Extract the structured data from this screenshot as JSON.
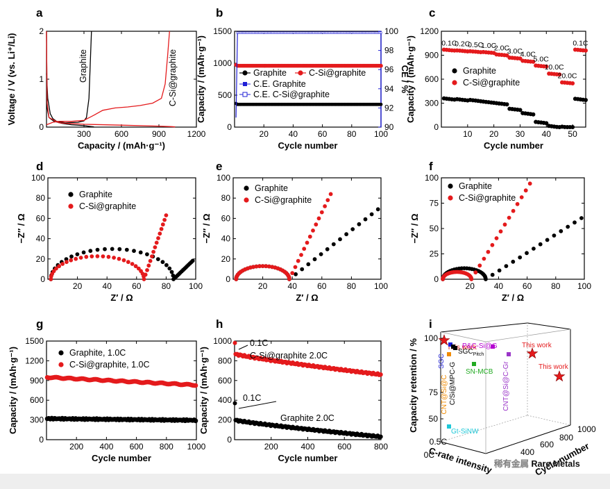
{
  "colors": {
    "graphite": "#000000",
    "csi": "#e41a1c",
    "ce": "#1f1fd6",
    "bottom_bar": "#eeeeee"
  },
  "watermark": "稀有金属 Rare Metals",
  "chart_data": [
    {
      "id": "a",
      "panel": "a",
      "type": "line",
      "xlabel": "Capacity / (mAh·g⁻¹)",
      "ylabel": "Voltage / V (vs. Li⁺/Li)",
      "xlim": [
        0,
        1200
      ],
      "ylim": [
        0,
        2
      ],
      "xticks": [
        300,
        600,
        900,
        1200
      ],
      "yticks": [
        0,
        1,
        2
      ],
      "series": [
        {
          "name": "Graphite",
          "color": "graphite",
          "label_rot": -90,
          "x": [
            0,
            10,
            30,
            50,
            80,
            150,
            250,
            300,
            320,
            340,
            350,
            360
          ],
          "y": [
            1.12,
            0.6,
            0.28,
            0.18,
            0.12,
            0.09,
            0.1,
            0.13,
            0.2,
            0.6,
            1.3,
            2.0
          ]
        },
        {
          "name": "Graphite-discharge",
          "color": "graphite",
          "x": [
            0,
            5,
            20,
            60,
            120,
            200,
            300,
            360,
            380
          ],
          "y": [
            2.0,
            0.4,
            0.2,
            0.12,
            0.08,
            0.05,
            0.03,
            0.01,
            0.005
          ]
        },
        {
          "name": "C-Si@graphite",
          "color": "csi",
          "x": [
            0,
            50,
            100,
            200,
            300,
            380,
            450,
            550,
            650,
            750,
            850,
            920,
            950,
            970,
            985
          ],
          "y": [
            0.05,
            0.1,
            0.12,
            0.12,
            0.14,
            0.25,
            0.35,
            0.4,
            0.42,
            0.45,
            0.5,
            0.6,
            0.9,
            1.5,
            2.0
          ]
        },
        {
          "name": "C-Si@graphite-discharge",
          "color": "csi",
          "x": [
            0,
            5,
            20,
            100,
            300,
            600,
            900,
            1000,
            1030
          ],
          "y": [
            2.0,
            0.5,
            0.2,
            0.09,
            0.06,
            0.04,
            0.02,
            0.01,
            0.005
          ]
        }
      ]
    },
    {
      "id": "b",
      "panel": "b",
      "type": "scatter",
      "xlabel": "Cycle number",
      "ylabel": "Capacity / (mAh·g⁻¹)",
      "y2label": "CE / %",
      "xlim": [
        0,
        100
      ],
      "ylim": [
        0,
        1500
      ],
      "y2lim": [
        90,
        100
      ],
      "xticks": [
        20,
        40,
        60,
        80,
        100
      ],
      "yticks": [
        0,
        500,
        1000,
        1500
      ],
      "y2ticks": [
        90,
        92,
        94,
        96,
        98,
        100
      ],
      "legend": [
        "Graphite",
        "C-Si@graphite",
        "C.E. Graphite",
        "C.E. C-Si@graphite"
      ],
      "series": [
        {
          "name": "Graphite",
          "color": "graphite",
          "start": 355,
          "end": 355,
          "first": 370
        },
        {
          "name": "C-Si@graphite",
          "color": "csi",
          "start": 960,
          "end": 960,
          "first": 975
        },
        {
          "name": "C.E. Graphite",
          "color": "ce",
          "start": 99.8,
          "end": 99.8,
          "first": 91
        },
        {
          "name": "C.E. C-Si@graphite",
          "color": "ce",
          "start": 99.8,
          "end": 99.8,
          "first": 91
        }
      ]
    },
    {
      "id": "c",
      "panel": "c",
      "type": "scatter",
      "xlabel": "Cycle number",
      "ylabel": "Capacity / (mAh·g⁻¹)",
      "xlim": [
        0,
        55
      ],
      "ylim": [
        0,
        1200
      ],
      "xticks": [
        10,
        20,
        30,
        40,
        50
      ],
      "yticks": [
        0,
        300,
        600,
        900,
        1200
      ],
      "legend": [
        "Graphite",
        "C-Si@graphite"
      ],
      "rate_labels": [
        "0.1C",
        "0.2C",
        "0.5C",
        "1.0C",
        "2.0C",
        "3.0C",
        "4.0C",
        "5.0C",
        "10.0C",
        "20.0C",
        "0.1C"
      ],
      "rates": [
        {
          "label": "0.1C",
          "x0": 1,
          "x1": 5,
          "csi": 970,
          "gr": 360
        },
        {
          "label": "0.2C",
          "x0": 6,
          "x1": 10,
          "csi": 960,
          "gr": 350
        },
        {
          "label": "0.5C",
          "x0": 11,
          "x1": 15,
          "csi": 950,
          "gr": 340
        },
        {
          "label": "1.0C",
          "x0": 16,
          "x1": 20,
          "csi": 940,
          "gr": 320
        },
        {
          "label": "2.0C",
          "x0": 21,
          "x1": 25,
          "csi": 910,
          "gr": 300
        },
        {
          "label": "3.0C",
          "x0": 26,
          "x1": 30,
          "csi": 870,
          "gr": 230
        },
        {
          "label": "4.0C",
          "x0": 31,
          "x1": 35,
          "csi": 830,
          "gr": 175
        },
        {
          "label": "5.0C",
          "x0": 36,
          "x1": 40,
          "csi": 770,
          "gr": 65
        },
        {
          "label": "10.0C",
          "x0": 41,
          "x1": 45,
          "csi": 670,
          "gr": 15
        },
        {
          "label": "20.0C",
          "x0": 46,
          "x1": 50,
          "csi": 560,
          "gr": 5
        },
        {
          "label": "0.1C",
          "x0": 51,
          "x1": 55,
          "csi": 970,
          "gr": 355
        }
      ]
    },
    {
      "id": "d",
      "panel": "d",
      "type": "scatter",
      "xlabel": "Z′ / Ω",
      "ylabel": "−Z″ / Ω",
      "xlim": [
        0,
        100
      ],
      "ylim": [
        0,
        100
      ],
      "xticks": [
        20,
        40,
        60,
        80,
        100
      ],
      "yticks": [
        0,
        20,
        40,
        60,
        80,
        100
      ],
      "legend": [
        "Graphite",
        "C-Si@graphite"
      ],
      "series": [
        {
          "name": "Graphite",
          "color": "graphite",
          "r0": 2,
          "d": 83,
          "tail": 1.4,
          "tailEnd": 98
        },
        {
          "name": "C-Si@graphite",
          "color": "csi",
          "r0": 2,
          "d": 63,
          "tail": 4.2,
          "tailEnd": 80
        }
      ]
    },
    {
      "id": "e",
      "panel": "e",
      "type": "scatter",
      "xlabel": "Z′ / Ω",
      "ylabel": "−Z″ / Ω",
      "xlim": [
        0,
        100
      ],
      "ylim": [
        0,
        100
      ],
      "xticks": [
        20,
        40,
        60,
        80,
        100
      ],
      "yticks": [
        0,
        20,
        40,
        60,
        80,
        100
      ],
      "legend": [
        "Graphite",
        "C-Si@graphite"
      ],
      "series": [
        {
          "name": "Graphite",
          "color": "graphite",
          "r0": 2,
          "d": 36,
          "tail": 1.15,
          "tailEnd": 98
        },
        {
          "name": "C-Si@graphite",
          "color": "csi",
          "r0": 2,
          "d": 36,
          "tail": 3.0,
          "tailEnd": 66
        }
      ]
    },
    {
      "id": "f",
      "panel": "f",
      "type": "scatter",
      "xlabel": "Z′ / Ω",
      "ylabel": "−Z″ / Ω",
      "xlim": [
        0,
        100
      ],
      "ylim": [
        0,
        100
      ],
      "xticks": [
        20,
        40,
        60,
        80,
        100
      ],
      "yticks": [
        0,
        25,
        50,
        75,
        100
      ],
      "legend": [
        "Graphite",
        "C-Si@graphite"
      ],
      "series": [
        {
          "name": "Graphite",
          "color": "graphite",
          "r0": 1,
          "d": 30,
          "tail": 0.9,
          "tailEnd": 98
        },
        {
          "name": "C-Si@graphite",
          "color": "csi",
          "r0": 1,
          "d": 20,
          "tail": 2.3,
          "tailEnd": 62
        }
      ]
    },
    {
      "id": "g",
      "panel": "g",
      "type": "scatter",
      "xlabel": "Cycle number",
      "ylabel": "Capacity / (mAh·g⁻¹)",
      "xlim": [
        0,
        1000
      ],
      "ylim": [
        0,
        1500
      ],
      "xticks": [
        200,
        400,
        600,
        800,
        1000
      ],
      "yticks": [
        0,
        300,
        600,
        900,
        1200,
        1500
      ],
      "legend": [
        "Graphite, 1.0C",
        "C-Si@graphite, 1.0C"
      ],
      "series": [
        {
          "name": "Graphite, 1.0C",
          "color": "graphite",
          "start": 320,
          "end": 295
        },
        {
          "name": "C-Si@graphite, 1.0C",
          "color": "csi",
          "start": 950,
          "end": 830
        }
      ]
    },
    {
      "id": "h",
      "panel": "h",
      "type": "scatter",
      "xlabel": "Cycle number",
      "ylabel": "Capacity / (mAh·g⁻¹)",
      "xlim": [
        0,
        800
      ],
      "ylim": [
        0,
        1000
      ],
      "xticks": [
        200,
        400,
        600,
        800
      ],
      "yticks": [
        0,
        200,
        400,
        600,
        800,
        1000
      ],
      "annotations": [
        "0.1C",
        "C-Si@graphite  2.0C",
        "0.1C",
        "Graphite  2.0C"
      ],
      "series": [
        {
          "name": "C-Si@graphite",
          "color": "csi",
          "start": 870,
          "end": 660,
          "first": 980
        },
        {
          "name": "Graphite",
          "color": "graphite",
          "start": 200,
          "end": 30,
          "first": 370
        }
      ]
    },
    {
      "id": "i",
      "panel": "i",
      "type": "scatter",
      "xlabel": "C-rate intensity",
      "ylabel": "Capacity retention / %",
      "zlabel": "Cycle number",
      "ylim": [
        50,
        100
      ],
      "yticks": [
        50,
        75,
        100
      ],
      "xticks": [
        "0C",
        "0.5C"
      ],
      "zticks": [
        400,
        600,
        800,
        1000
      ],
      "points": [
        {
          "label": "This work",
          "color": "csi",
          "kind": "star"
        },
        {
          "label": "This work",
          "color": "csi",
          "kind": "star"
        },
        {
          "label": "This work",
          "color": "csi",
          "kind": "star"
        },
        {
          "label": "SGC",
          "color": "ce",
          "kind": "square"
        },
        {
          "label": "CNT@Si@C",
          "color": "#f08a00",
          "kind": "square"
        },
        {
          "label": "C/Si@MPC-G",
          "color": "graphite",
          "kind": "square"
        },
        {
          "label": "SGC",
          "sub": "Pitch",
          "color": "graphite",
          "kind": "square"
        },
        {
          "label": "P&C-Si@G",
          "color": "#b400d0",
          "kind": "square"
        },
        {
          "label": "SN-MCB",
          "color": "#22aa22",
          "kind": "square"
        },
        {
          "label": "CNT@Si@C-Gr",
          "color": "#9a35c8",
          "kind": "square"
        },
        {
          "label": "Gt-SiNW",
          "color": "#1ec8d8",
          "kind": "square"
        }
      ]
    }
  ]
}
